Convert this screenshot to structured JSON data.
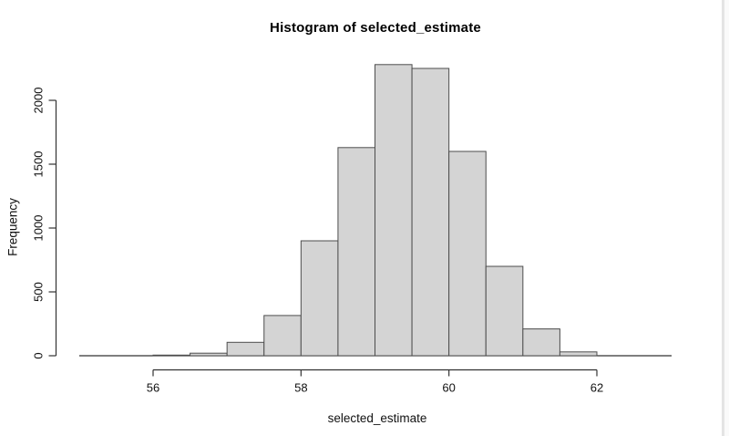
{
  "window": {
    "background": "#ffffff",
    "right_edge_color": "#e4e4e4"
  },
  "chart_data": {
    "type": "bar",
    "subtype": "histogram",
    "title": "Histogram of selected_estimate",
    "xlabel": "selected_estimate",
    "ylabel": "Frequency",
    "bin_edges": [
      56.0,
      56.5,
      57.0,
      57.5,
      58.0,
      58.5,
      59.0,
      59.5,
      60.0,
      60.5,
      61.0,
      61.5,
      62.0
    ],
    "counts": [
      5,
      20,
      105,
      315,
      900,
      1630,
      2280,
      2250,
      1600,
      700,
      210,
      30
    ],
    "x_ticks": [
      56,
      58,
      60,
      62
    ],
    "x_tick_labels": [
      "56",
      "58",
      "60",
      "62"
    ],
    "y_ticks": [
      0,
      500,
      1000,
      1500,
      2000
    ],
    "y_tick_labels": [
      "0",
      "500",
      "1000",
      "1500",
      "2000"
    ],
    "xlim": [
      55,
      63
    ],
    "ylim": [
      0,
      2300
    ],
    "grid": false,
    "legend": null,
    "bar_fill": "#d4d4d4",
    "bar_border": "#4d4d4d",
    "axis_color": "#333333",
    "text_color": "#111111"
  }
}
